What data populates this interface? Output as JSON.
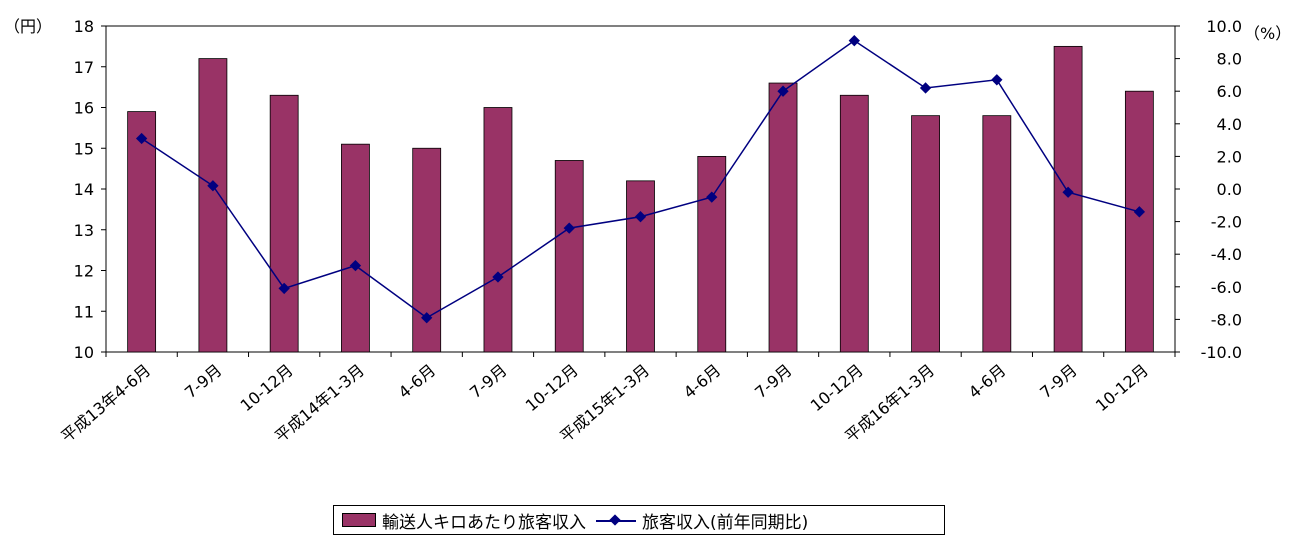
{
  "chart_data": {
    "type": "bar",
    "categories": [
      "平成13年4-6月",
      "7-9月",
      "10-12月",
      "平成14年1-3月",
      "4-6月",
      "7-9月",
      "10-12月",
      "平成15年1-3月",
      "4-6月",
      "7-9月",
      "10-12月",
      "平成16年1-3月",
      "4-6月",
      "7-9月",
      "10-12月"
    ],
    "series": [
      {
        "name": "輸送人キロあたり旅客収入",
        "type": "bar",
        "axis": "left",
        "color": "#993366",
        "values": [
          15.9,
          17.2,
          16.3,
          15.1,
          15.0,
          16.0,
          14.7,
          14.2,
          14.8,
          16.6,
          16.3,
          15.8,
          15.8,
          17.5,
          16.4
        ]
      },
      {
        "name": "旅客収入(前年同期比)",
        "type": "line",
        "axis": "right",
        "color": "#000080",
        "values": [
          3.1,
          0.2,
          -6.1,
          -4.7,
          -7.9,
          -5.4,
          -2.4,
          -1.7,
          -0.5,
          6.0,
          9.1,
          6.2,
          6.7,
          -0.2,
          -1.4
        ]
      }
    ],
    "y_left": {
      "unit": "（円）",
      "range": [
        10,
        18
      ],
      "ticks": [
        "10",
        "11",
        "12",
        "13",
        "14",
        "15",
        "16",
        "17",
        "18"
      ]
    },
    "y_right": {
      "unit": "（%）",
      "range": [
        -10,
        10
      ],
      "ticks": [
        "-10.0",
        "-8.0",
        "-6.0",
        "-4.0",
        "-2.0",
        "0.0",
        "2.0",
        "4.0",
        "6.0",
        "8.0",
        "10.0"
      ]
    },
    "legend": {
      "position": "bottom",
      "items": [
        {
          "label": "輸送人キロあたり旅客収入",
          "kind": "bar"
        },
        {
          "label": "旅客収入(前年同期比)",
          "kind": "line"
        }
      ]
    }
  }
}
